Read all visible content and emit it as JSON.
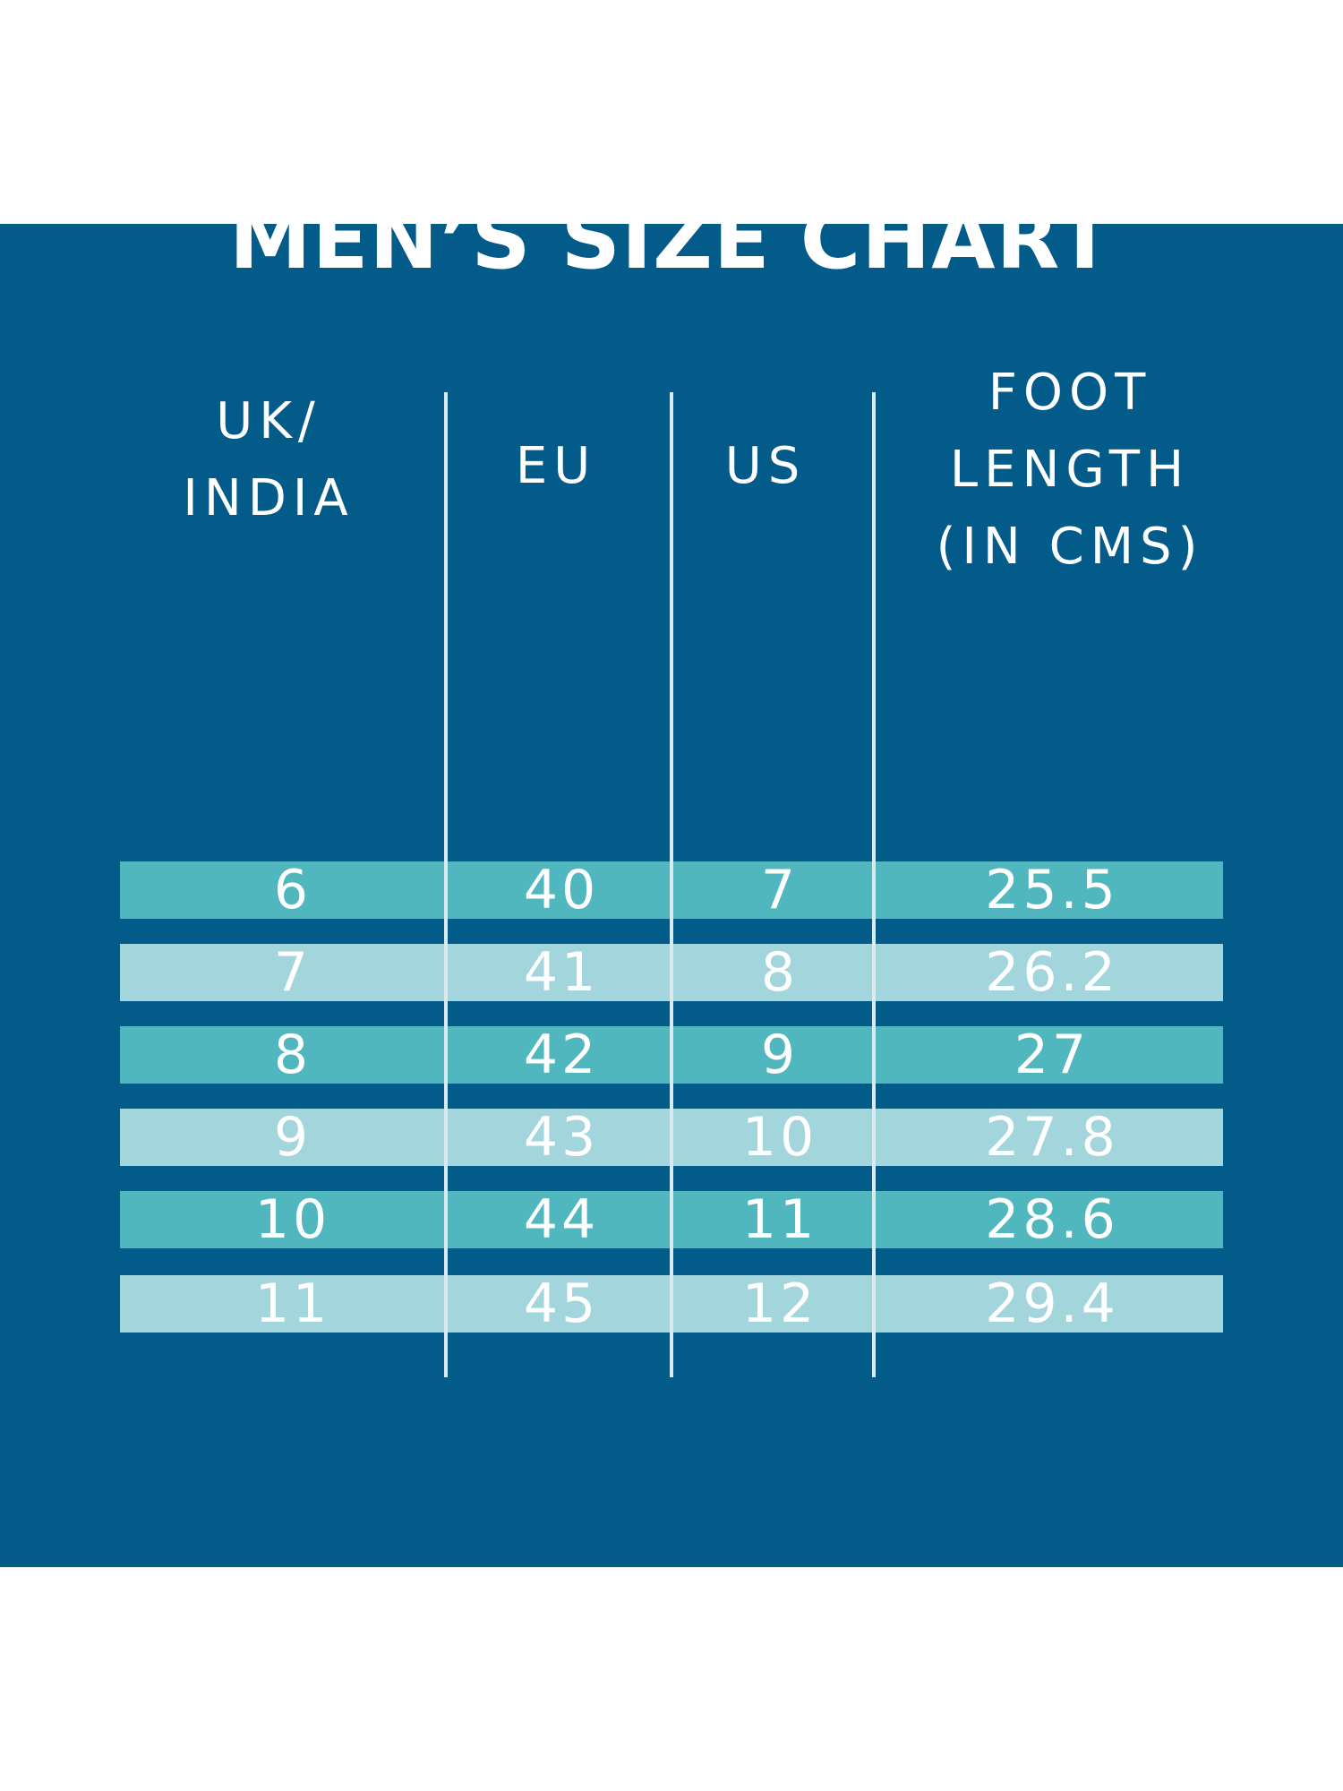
{
  "title": "MEN’S SIZE CHART",
  "colors": {
    "background": "#ffffff",
    "panel": "#035b8a",
    "row_dark": "#4fb7bd",
    "row_light": "#a3d5dc",
    "text": "#ffffff",
    "divider": "#dbe9f0"
  },
  "chart_data": {
    "type": "table",
    "title": "MEN’S SIZE CHART",
    "columns": [
      "UK/\nINDIA",
      "EU",
      "US",
      "FOOT\nLENGTH\n(IN CMS)"
    ],
    "rows": [
      [
        "6",
        "40",
        "7",
        "25.5"
      ],
      [
        "7",
        "41",
        "8",
        "26.2"
      ],
      [
        "8",
        "42",
        "9",
        "27"
      ],
      [
        "9",
        "43",
        "10",
        "27.8"
      ],
      [
        "10",
        "44",
        "11",
        "28.6"
      ],
      [
        "11",
        "45",
        "12",
        "29.4"
      ]
    ]
  }
}
